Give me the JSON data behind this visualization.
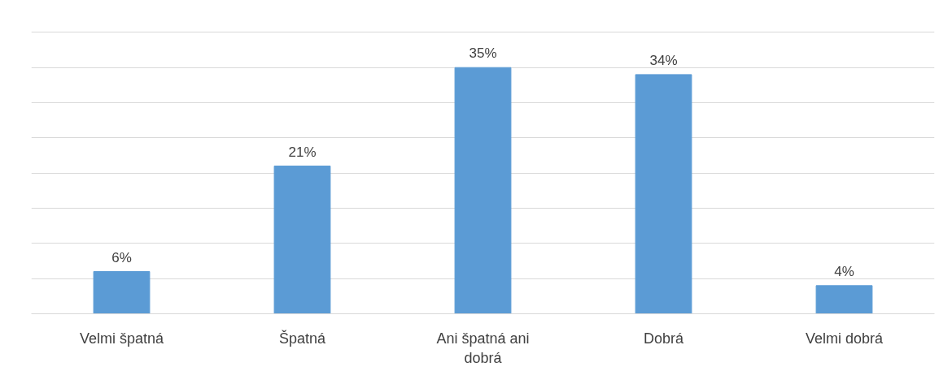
{
  "chart_data": {
    "type": "bar",
    "categories": [
      "Velmi špatná",
      "Špatná",
      "Ani špatná ani dobrá",
      "Dobrá",
      "Velmi dobrá"
    ],
    "values": [
      6,
      21,
      35,
      34,
      4
    ],
    "value_labels": [
      "6%",
      "21%",
      "35%",
      "34%",
      "4%"
    ],
    "color": "#5b9bd5",
    "yticks": [
      {
        "value": 0,
        "label": null
      },
      {
        "value": 5,
        "label": null
      },
      {
        "value": 10,
        "label": null
      },
      {
        "value": 15,
        "label": null
      },
      {
        "value": 20,
        "label": null
      },
      {
        "value": 25,
        "label": null
      },
      {
        "value": 30,
        "label": null
      },
      {
        "value": 35,
        "label": null
      },
      {
        "value": 40,
        "label": null
      }
    ],
    "grid": "y",
    "tick_labels": "x"
  }
}
